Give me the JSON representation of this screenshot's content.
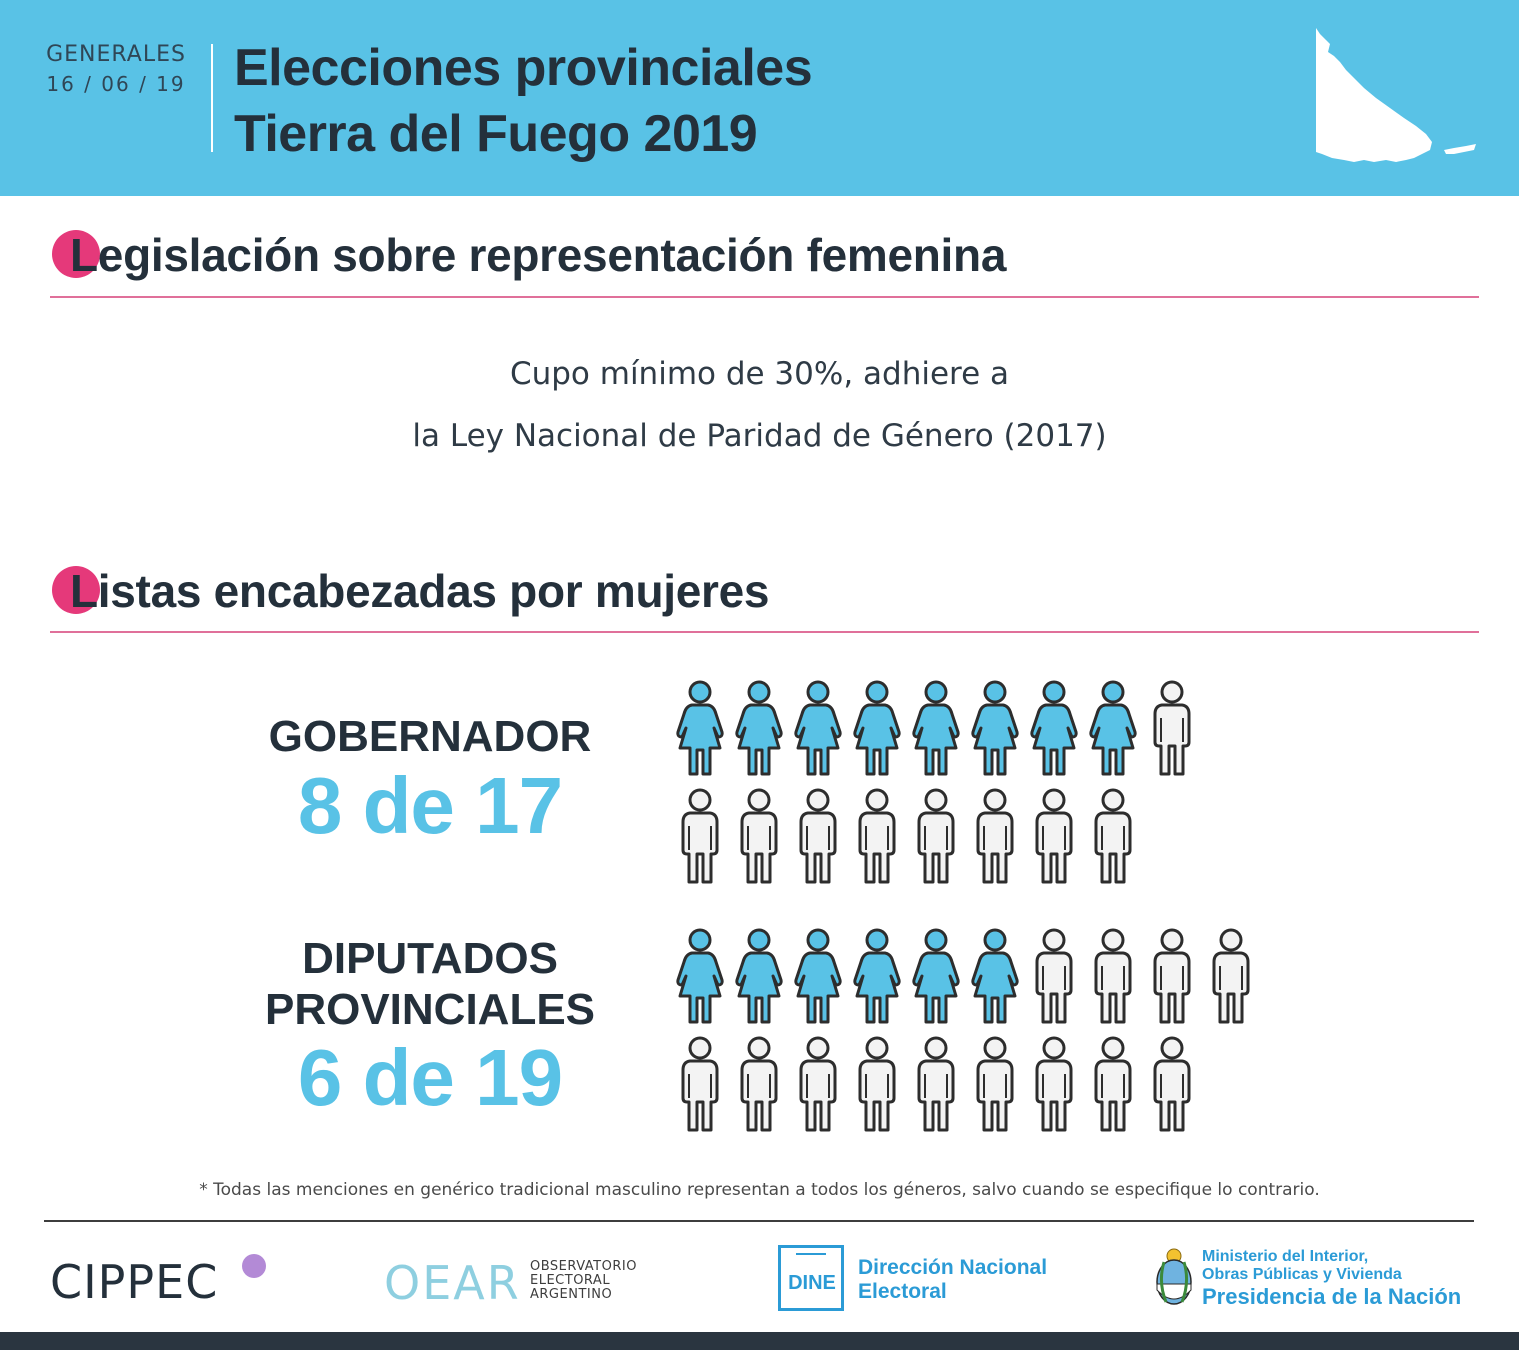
{
  "header": {
    "kicker": "GENERALES",
    "date": "16 / 06 / 19",
    "title_line1": "Elecciones provinciales",
    "title_line2": "Tierra del Fuego 2019",
    "map_icon": "tierra-del-fuego-map-icon"
  },
  "section1": {
    "title": "Legislación sobre representación femenina",
    "text_line1": "Cupo mínimo de 30%, adhiere a",
    "text_line2": "la Ley Nacional de Paridad de Género (2017)"
  },
  "section2": {
    "title": "Listas encabezadas por mujeres",
    "gobernador": {
      "label": "GOBERNADOR",
      "value": "8 de 17",
      "women": 8,
      "total": 17,
      "per_row": 9
    },
    "diputados": {
      "label_line1": "DIPUTADOS",
      "label_line2": "PROVINCIALES",
      "value": "6 de 19",
      "women": 6,
      "total": 19,
      "per_row": 10
    }
  },
  "colors": {
    "accent": "#59c2e6",
    "pink": "#e5397a",
    "dark": "#24303b",
    "figure_neutral": "#f3f3f3",
    "figure_outline": "#2d2d2d"
  },
  "footnote": "* Todas las menciones en genérico tradicional masculino representan a todos los géneros, salvo cuando se especifique lo contrario.",
  "footer": {
    "cippec": "CIPPEC",
    "oear": "OEAR",
    "oear_sub1": "OBSERVATORIO",
    "oear_sub2": "ELECTORAL",
    "oear_sub3": "ARGENTINO",
    "dine": "DINE",
    "dine_name1": "Dirección Nacional",
    "dine_name2": "Electoral",
    "ministry1": "Ministerio del Interior,",
    "ministry2": "Obras Públicas y Vivienda",
    "ministry3": "Presidencia de la Nación"
  }
}
